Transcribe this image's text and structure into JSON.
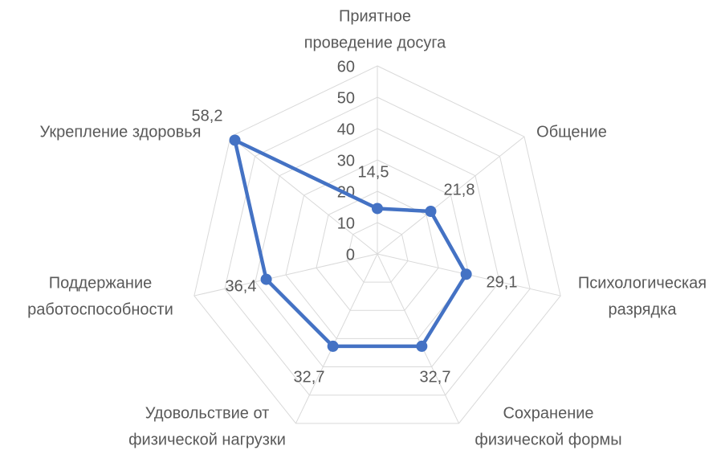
{
  "chart_data": {
    "type": "radar",
    "categories": [
      "Приятное\nпроведение досуга",
      "Общение",
      "Психологическая\nразрядка",
      "Сохранение\nфизической формы",
      "Удовольствие от\nфизической нагрузки",
      "Поддержание\nработоспособности",
      "Укрепление здоровья"
    ],
    "values": [
      14.5,
      21.8,
      29.1,
      32.7,
      32.7,
      36.4,
      58.2
    ],
    "value_labels": [
      "14,5",
      "21,8",
      "29,1",
      "32,7",
      "32,7",
      "36,4",
      "58,2"
    ],
    "color": "#4472c4",
    "ylim": [
      0,
      60
    ],
    "yticks": [
      0,
      10,
      20,
      30,
      40,
      50,
      60
    ],
    "grid": true
  }
}
